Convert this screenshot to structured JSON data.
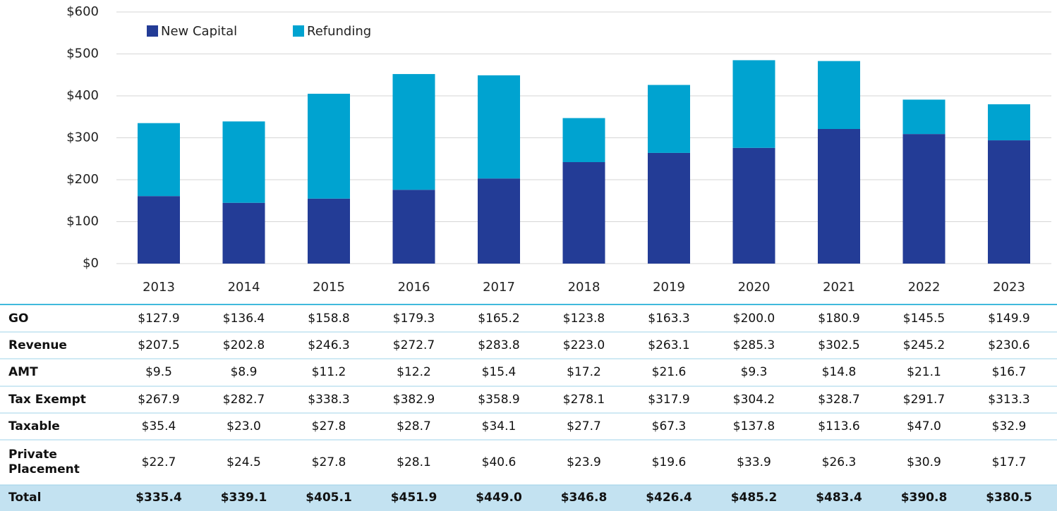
{
  "chart_data": {
    "type": "stacked-bar",
    "categories": [
      "2013",
      "2014",
      "2015",
      "2016",
      "2017",
      "2018",
      "2019",
      "2020",
      "2021",
      "2022",
      "2023"
    ],
    "series": [
      {
        "name": "New Capital",
        "color": "#233c96",
        "values": [
          161,
          145,
          155,
          176,
          203,
          242,
          264,
          276,
          321,
          309,
          294
        ]
      },
      {
        "name": "Refunding",
        "color": "#00a3d0",
        "values": [
          174,
          194,
          250,
          276,
          246,
          105,
          162,
          209,
          162,
          82,
          86
        ]
      }
    ],
    "ylim": [
      0,
      600
    ],
    "yticks": [
      {
        "value": 0,
        "label": "$0"
      },
      {
        "value": 100,
        "label": "$100"
      },
      {
        "value": 200,
        "label": "$200"
      },
      {
        "value": 300,
        "label": "$300"
      },
      {
        "value": 400,
        "label": "$400"
      },
      {
        "value": 500,
        "label": "$500"
      },
      {
        "value": 600,
        "label": "$600"
      }
    ],
    "grid": true,
    "legend": "top-left"
  },
  "table": {
    "rows": [
      [
        "GO",
        "$127.9",
        "$136.4",
        "$158.8",
        "$179.3",
        "$165.2",
        "$123.8",
        "$163.3",
        "$200.0",
        "$180.9",
        "$145.5",
        "$149.9"
      ],
      [
        "Revenue",
        "$207.5",
        "$202.8",
        "$246.3",
        "$272.7",
        "$283.8",
        "$223.0",
        "$263.1",
        "$285.3",
        "$302.5",
        "$245.2",
        "$230.6"
      ],
      [
        "AMT",
        "$9.5",
        "$8.9",
        "$11.2",
        "$12.2",
        "$15.4",
        "$17.2",
        "$21.6",
        "$9.3",
        "$14.8",
        "$21.1",
        "$16.7"
      ],
      [
        "Tax Exempt",
        "$267.9",
        "$282.7",
        "$338.3",
        "$382.9",
        "$358.9",
        "$278.1",
        "$317.9",
        "$304.2",
        "$328.7",
        "$291.7",
        "$313.3"
      ],
      [
        "Taxable",
        "$35.4",
        "$23.0",
        "$27.8",
        "$28.7",
        "$34.1",
        "$27.7",
        "$67.3",
        "$137.8",
        "$113.6",
        "$47.0",
        "$32.9"
      ],
      [
        "Private Placement",
        "$22.7",
        "$24.5",
        "$27.8",
        "$28.1",
        "$40.6",
        "$23.9",
        "$19.6",
        "$33.9",
        "$26.3",
        "$30.9",
        "$17.7"
      ],
      [
        "Total",
        "$335.4",
        "$339.1",
        "$405.1",
        "$451.9",
        "$449.0",
        "$346.8",
        "$426.4",
        "$485.2",
        "$483.4",
        "$390.8",
        "$380.5"
      ]
    ]
  }
}
